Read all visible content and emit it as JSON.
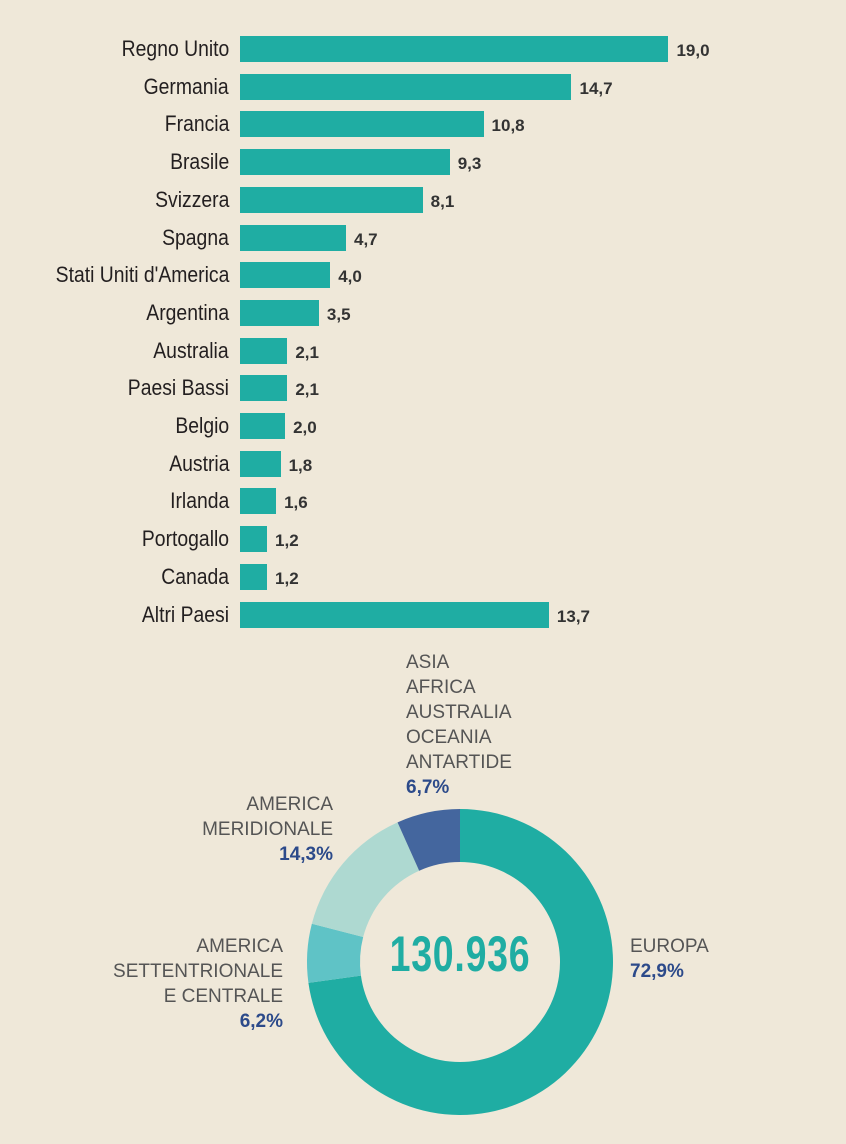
{
  "chart_data": [
    {
      "type": "bar",
      "orientation": "horizontal",
      "categories": [
        "Regno Unito",
        "Germania",
        "Francia",
        "Brasile",
        "Svizzera",
        "Spagna",
        "Stati Uniti d'America",
        "Argentina",
        "Australia",
        "Paesi Bassi",
        "Belgio",
        "Austria",
        "Irlanda",
        "Portogallo",
        "Canada",
        "Altri Paesi"
      ],
      "values": [
        19.0,
        14.7,
        10.8,
        9.3,
        8.1,
        4.7,
        4.0,
        3.5,
        2.1,
        2.1,
        2.0,
        1.8,
        1.6,
        1.2,
        1.2,
        13.7
      ],
      "value_labels": [
        "19,0",
        "14,7",
        "10,8",
        "9,3",
        "8,1",
        "4,7",
        "4,0",
        "3,5",
        "2,1",
        "2,1",
        "2,0",
        "1,8",
        "1,6",
        "1,2",
        "1,2",
        "13,7"
      ],
      "color": "#1fada3",
      "grid": false
    },
    {
      "type": "pie",
      "donut": true,
      "center_label": "130.936",
      "slices": [
        {
          "label": [
            "EUROPA"
          ],
          "value": 72.9,
          "value_label": "72,9%",
          "color": "#1fada3"
        },
        {
          "label": [
            "AMERICA",
            "SETTENTRIONALE",
            "E CENTRALE"
          ],
          "value": 6.2,
          "value_label": "6,2%",
          "color": "#5fc3c6"
        },
        {
          "label": [
            "AMERICA",
            "MERIDIONALE"
          ],
          "value": 14.3,
          "value_label": "14,3%",
          "color": "#aed9d1"
        },
        {
          "label": [
            "ASIA",
            "AFRICA",
            "AUSTRALIA",
            "OCEANIA",
            "ANTARTIDE"
          ],
          "value": 6.7,
          "value_label": "6,7%",
          "color": "#44669e"
        }
      ]
    }
  ]
}
